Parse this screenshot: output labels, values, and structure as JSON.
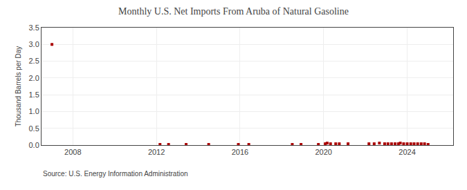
{
  "chart_data": {
    "type": "scatter",
    "title": "Monthly U.S. Net Imports From Aruba of Natural Gasoline",
    "ylabel": "Thousand Barrels per Day",
    "annotations": [
      "Source: U.S. Energy Information Administration"
    ],
    "color": "#aa0000",
    "marker": "square",
    "grid": true,
    "xlim": [
      2006.5,
      2026.2
    ],
    "xticks": [
      2008,
      2012,
      2016,
      2020,
      2024
    ],
    "ylim": [
      0.0,
      3.5
    ],
    "yticks": [
      {
        "value": 0,
        "label": "0.0"
      },
      0.5,
      {
        "value": 1,
        "label": "1.0"
      },
      1.5,
      {
        "value": 2,
        "label": "2.0"
      },
      2.5,
      {
        "value": 3,
        "label": "3.0"
      },
      3.5
    ],
    "x": [
      2007.0,
      2012.17,
      2012.58,
      2013.42,
      2014.5,
      2015.92,
      2016.42,
      2018.5,
      2018.92,
      2019.75,
      2020.08,
      2020.17,
      2020.33,
      2020.58,
      2020.75,
      2021.17,
      2022.17,
      2022.42,
      2022.67,
      2022.92,
      2023.08,
      2023.25,
      2023.42,
      2023.58,
      2023.67,
      2023.83,
      2024.0,
      2024.17,
      2024.33,
      2024.5,
      2024.67,
      2024.83,
      2025.0
    ],
    "values": [
      3.0,
      0.02,
      0.02,
      0.02,
      0.02,
      0.02,
      0.02,
      0.02,
      0.02,
      0.02,
      0.04,
      0.06,
      0.04,
      0.04,
      0.04,
      0.04,
      0.04,
      0.04,
      0.06,
      0.04,
      0.04,
      0.04,
      0.04,
      0.04,
      0.06,
      0.04,
      0.04,
      0.04,
      0.04,
      0.04,
      0.04,
      0.04,
      0.02
    ]
  }
}
